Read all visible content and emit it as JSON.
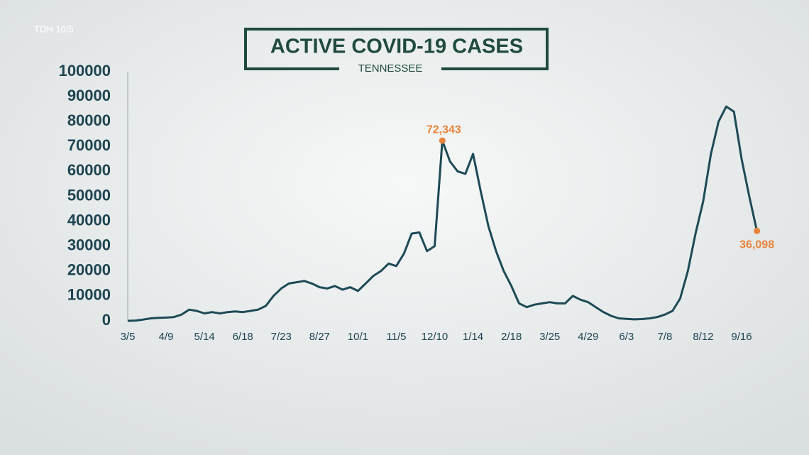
{
  "source": "TDH 10/5",
  "chart_data": {
    "type": "line",
    "title": "ACTIVE COVID-19 CASES",
    "subtitle": "TENNESSEE",
    "categories": [
      "3/5",
      null,
      null,
      null,
      null,
      "4/9",
      null,
      null,
      null,
      null,
      "5/14",
      null,
      null,
      null,
      null,
      "6/18",
      null,
      null,
      null,
      null,
      "7/23",
      null,
      null,
      null,
      null,
      "8/27",
      null,
      null,
      null,
      null,
      "10/1",
      null,
      null,
      null,
      null,
      "11/5",
      null,
      null,
      null,
      null,
      "12/10",
      null,
      null,
      null,
      null,
      "1/14",
      null,
      null,
      null,
      null,
      "2/18",
      null,
      null,
      null,
      null,
      "3/25",
      null,
      null,
      null,
      null,
      "4/29",
      null,
      null,
      null,
      null,
      "6/3",
      null,
      null,
      null,
      null,
      "7/8",
      null,
      null,
      null,
      null,
      "8/12",
      null,
      null,
      null,
      null,
      "9/16",
      null,
      null
    ],
    "values": [
      0,
      100,
      500,
      1000,
      1200,
      1300,
      1500,
      2500,
      4500,
      4000,
      3000,
      3500,
      3000,
      3500,
      3800,
      3500,
      4000,
      4500,
      6000,
      10000,
      13000,
      15000,
      15500,
      16000,
      15000,
      13500,
      13000,
      14000,
      12500,
      13500,
      12000,
      15000,
      18000,
      20000,
      23000,
      22000,
      27000,
      35000,
      35500,
      28000,
      30000,
      72343,
      64000,
      60000,
      59000,
      67000,
      52000,
      38000,
      28000,
      20000,
      14000,
      7000,
      5500,
      6500,
      7000,
      7500,
      7000,
      7000,
      10000,
      8500,
      7500,
      5500,
      3500,
      2000,
      1000,
      800,
      600,
      700,
      1000,
      1500,
      2500,
      4000,
      9000,
      20000,
      35000,
      48000,
      67000,
      80000,
      86000,
      84000,
      65000,
      50000,
      36098
    ],
    "value_labels": [
      null,
      null,
      null,
      null,
      null,
      null,
      null,
      null,
      null,
      null,
      null,
      null,
      null,
      null,
      null,
      null,
      null,
      null,
      null,
      null,
      null,
      null,
      null,
      null,
      null,
      null,
      null,
      null,
      null,
      null,
      null,
      null,
      null,
      null,
      null,
      null,
      null,
      null,
      null,
      null,
      null,
      "72,343",
      null,
      null,
      null,
      null,
      null,
      null,
      null,
      null,
      null,
      null,
      null,
      null,
      null,
      null,
      null,
      null,
      null,
      null,
      null,
      null,
      null,
      null,
      null,
      null,
      null,
      null,
      null,
      null,
      null,
      null,
      null,
      null,
      null,
      null,
      null,
      null,
      null,
      null,
      null,
      null,
      "36,098"
    ],
    "color": "#1d4a56",
    "label_color": "#e8843c",
    "ylim": [
      0,
      100000
    ],
    "yticks": [
      0,
      10000,
      20000,
      30000,
      40000,
      50000,
      60000,
      70000,
      80000,
      90000,
      100000
    ],
    "grid": false
  }
}
